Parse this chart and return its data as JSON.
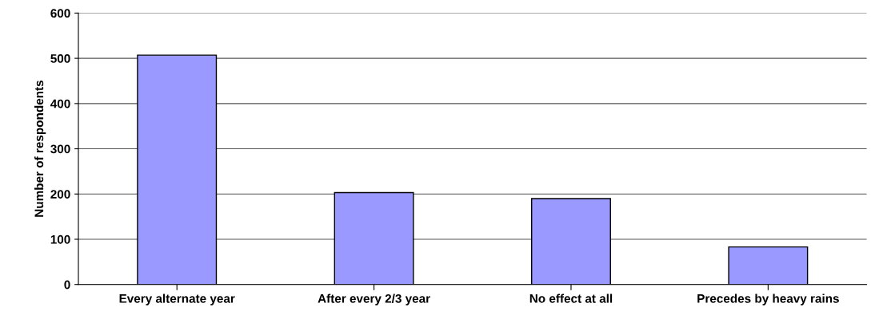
{
  "chart_data": {
    "type": "bar",
    "ylabel": "Number of respondents",
    "categories": [
      "Every alternate year",
      "After every 2/3 year",
      "No effect at all",
      "Precedes by heavy rains"
    ],
    "values": [
      507,
      203,
      190,
      83
    ],
    "color": "#9999ff",
    "ylim": [
      0,
      600
    ],
    "yticks": [
      0,
      100,
      200,
      300,
      400,
      500,
      600
    ],
    "grid": "y"
  }
}
